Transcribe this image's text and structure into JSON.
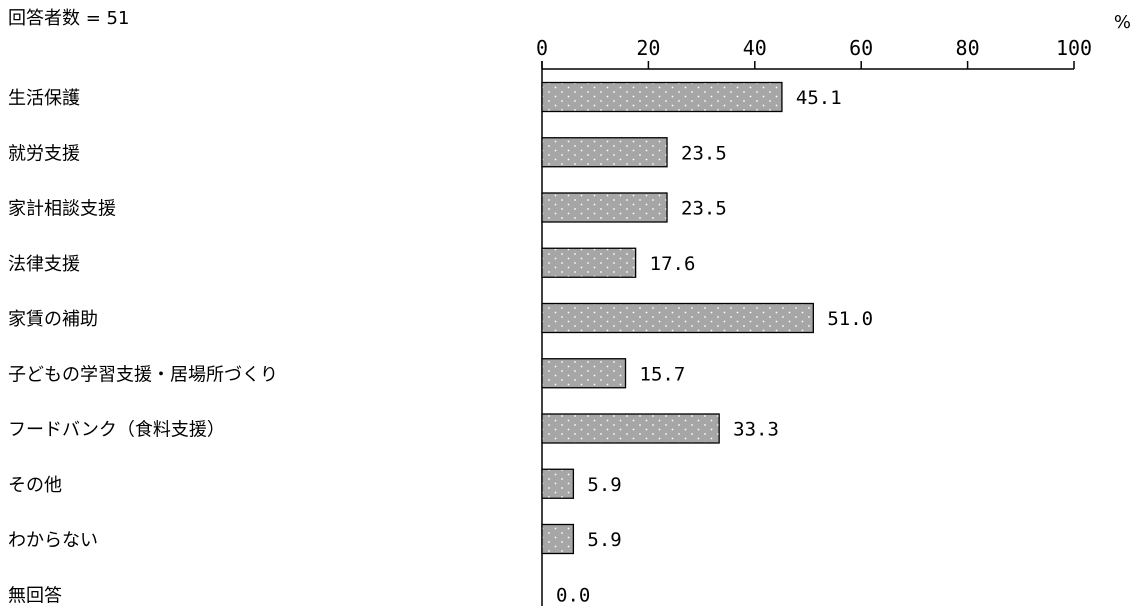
{
  "respondents_label": "回答者数 = 51",
  "unit": "%",
  "colors": {
    "bar_fill": "#a6a6a6",
    "dot": "#ffffff",
    "axis": "#000000"
  },
  "chart_data": {
    "type": "bar",
    "orientation": "horizontal",
    "categories": [
      "生活保護",
      "就労支援",
      "家計相談支援",
      "法律支援",
      "家賃の補助",
      "子どもの学習支援・居場所づくり",
      "フードバンク（食料支援）",
      "その他",
      "わからない",
      "無回答"
    ],
    "values": [
      45.1,
      23.5,
      23.5,
      17.6,
      51.0,
      15.7,
      33.3,
      5.9,
      5.9,
      0.0
    ],
    "value_labels": [
      "45.1",
      "23.5",
      "23.5",
      "17.6",
      "51.0",
      "15.7",
      "33.3",
      "5.9",
      "5.9",
      "0.0"
    ],
    "xlim": [
      0,
      100
    ],
    "ticks": [
      0,
      20,
      40,
      60,
      80,
      100
    ],
    "tick_labels": [
      "0",
      "20",
      "40",
      "60",
      "80",
      "100"
    ],
    "axis_position": "top",
    "grid": false,
    "legend": "none"
  }
}
